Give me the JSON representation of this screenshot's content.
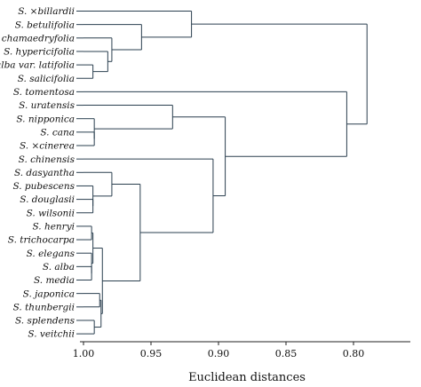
{
  "figure": {
    "axis_title": "Euclidean distances",
    "axis": {
      "range": [
        1.0,
        0.76
      ],
      "reversed": true,
      "ticks": [
        {
          "value": 1.0,
          "label": "1.00"
        },
        {
          "value": 0.95,
          "label": "0.95"
        },
        {
          "value": 0.9,
          "label": "0.90"
        },
        {
          "value": 0.85,
          "label": "0.85"
        },
        {
          "value": 0.8,
          "label": "0.80"
        }
      ]
    },
    "colors": {
      "branches": "#2a3f4f",
      "axis": "#222222",
      "text": "#111111"
    },
    "leaves": [
      {
        "id": "billardii",
        "label": "S. ×billardii"
      },
      {
        "id": "betulifolia",
        "label": "S. betulifolia"
      },
      {
        "id": "chamaedryfolia",
        "label": "S. chamaedryfolia"
      },
      {
        "id": "hypericifolia",
        "label": "S. hypericifolia"
      },
      {
        "id": "alba_latifolia",
        "label": "S. alba var. latifolia"
      },
      {
        "id": "salicifolia",
        "label": "S. salicifolia"
      },
      {
        "id": "tomentosa",
        "label": "S. tomentosa"
      },
      {
        "id": "uratensis",
        "label": "S. uratensis"
      },
      {
        "id": "nipponica",
        "label": "S. nipponica"
      },
      {
        "id": "cana",
        "label": "S. cana"
      },
      {
        "id": "cinerea",
        "label": "S. ×cinerea"
      },
      {
        "id": "chinensis",
        "label": "S. chinensis"
      },
      {
        "id": "dasyantha",
        "label": "S. dasyantha"
      },
      {
        "id": "pubescens",
        "label": "S. pubescens"
      },
      {
        "id": "douglasii",
        "label": "S. douglasii"
      },
      {
        "id": "wilsonii",
        "label": "S. wilsonii"
      },
      {
        "id": "henryi",
        "label": "S. henryi"
      },
      {
        "id": "trichocarpa",
        "label": "S. trichocarpa"
      },
      {
        "id": "elegans",
        "label": "S. elegans"
      },
      {
        "id": "alba",
        "label": "S. alba"
      },
      {
        "id": "media",
        "label": "S. media"
      },
      {
        "id": "japonica",
        "label": "S. japonica"
      },
      {
        "id": "thunbergii",
        "label": "S. thunbergii"
      },
      {
        "id": "splendens",
        "label": "S. splendens"
      },
      {
        "id": "veitchii",
        "label": "S. veitchii"
      }
    ],
    "merges": [
      {
        "id": "c1",
        "children": [
          "alba_latifolia",
          "salicifolia"
        ],
        "distance": 0.993
      },
      {
        "id": "c2",
        "children": [
          "hypericifolia",
          "c1"
        ],
        "distance": 0.982
      },
      {
        "id": "c3",
        "children": [
          "chamaedryfolia",
          "c2"
        ],
        "distance": 0.979
      },
      {
        "id": "c4",
        "children": [
          "betulifolia",
          "c3"
        ],
        "distance": 0.957
      },
      {
        "id": "c5",
        "children": [
          "billardii",
          "c4"
        ],
        "distance": 0.92
      },
      {
        "id": "c6",
        "children": [
          "cana",
          "cinerea"
        ],
        "distance": 0.992
      },
      {
        "id": "c7",
        "children": [
          "nipponica",
          "c6"
        ],
        "distance": 0.992
      },
      {
        "id": "c8",
        "children": [
          "uratensis",
          "c7"
        ],
        "distance": 0.934
      },
      {
        "id": "c9",
        "children": [
          "douglasii",
          "wilsonii"
        ],
        "distance": 0.993
      },
      {
        "id": "c10",
        "children": [
          "pubescens",
          "c9"
        ],
        "distance": 0.993
      },
      {
        "id": "c11",
        "children": [
          "dasyantha",
          "c10"
        ],
        "distance": 0.979
      },
      {
        "id": "c12",
        "children": [
          "henryi",
          "trichocarpa"
        ],
        "distance": 0.994
      },
      {
        "id": "c13",
        "children": [
          "alba",
          "media"
        ],
        "distance": 0.994
      },
      {
        "id": "c14",
        "children": [
          "elegans",
          "c13"
        ],
        "distance": 0.994
      },
      {
        "id": "c15",
        "children": [
          "c12",
          "c14"
        ],
        "distance": 0.993
      },
      {
        "id": "c16",
        "children": [
          "japonica",
          "thunbergii"
        ],
        "distance": 0.988
      },
      {
        "id": "c17",
        "children": [
          "splendens",
          "veitchii"
        ],
        "distance": 0.992
      },
      {
        "id": "c18",
        "children": [
          "c16",
          "c17"
        ],
        "distance": 0.987
      },
      {
        "id": "c19",
        "children": [
          "c15",
          "c18"
        ],
        "distance": 0.986
      },
      {
        "id": "c20",
        "children": [
          "c11",
          "c19"
        ],
        "distance": 0.958
      },
      {
        "id": "c21",
        "children": [
          "chinensis",
          "c20"
        ],
        "distance": 0.904
      },
      {
        "id": "c22",
        "children": [
          "c8",
          "c21"
        ],
        "distance": 0.895
      },
      {
        "id": "c23",
        "children": [
          "tomentosa",
          "c22"
        ],
        "distance": 0.805
      },
      {
        "id": "c24",
        "children": [
          "c5",
          "c23"
        ],
        "distance": 0.79
      }
    ]
  }
}
